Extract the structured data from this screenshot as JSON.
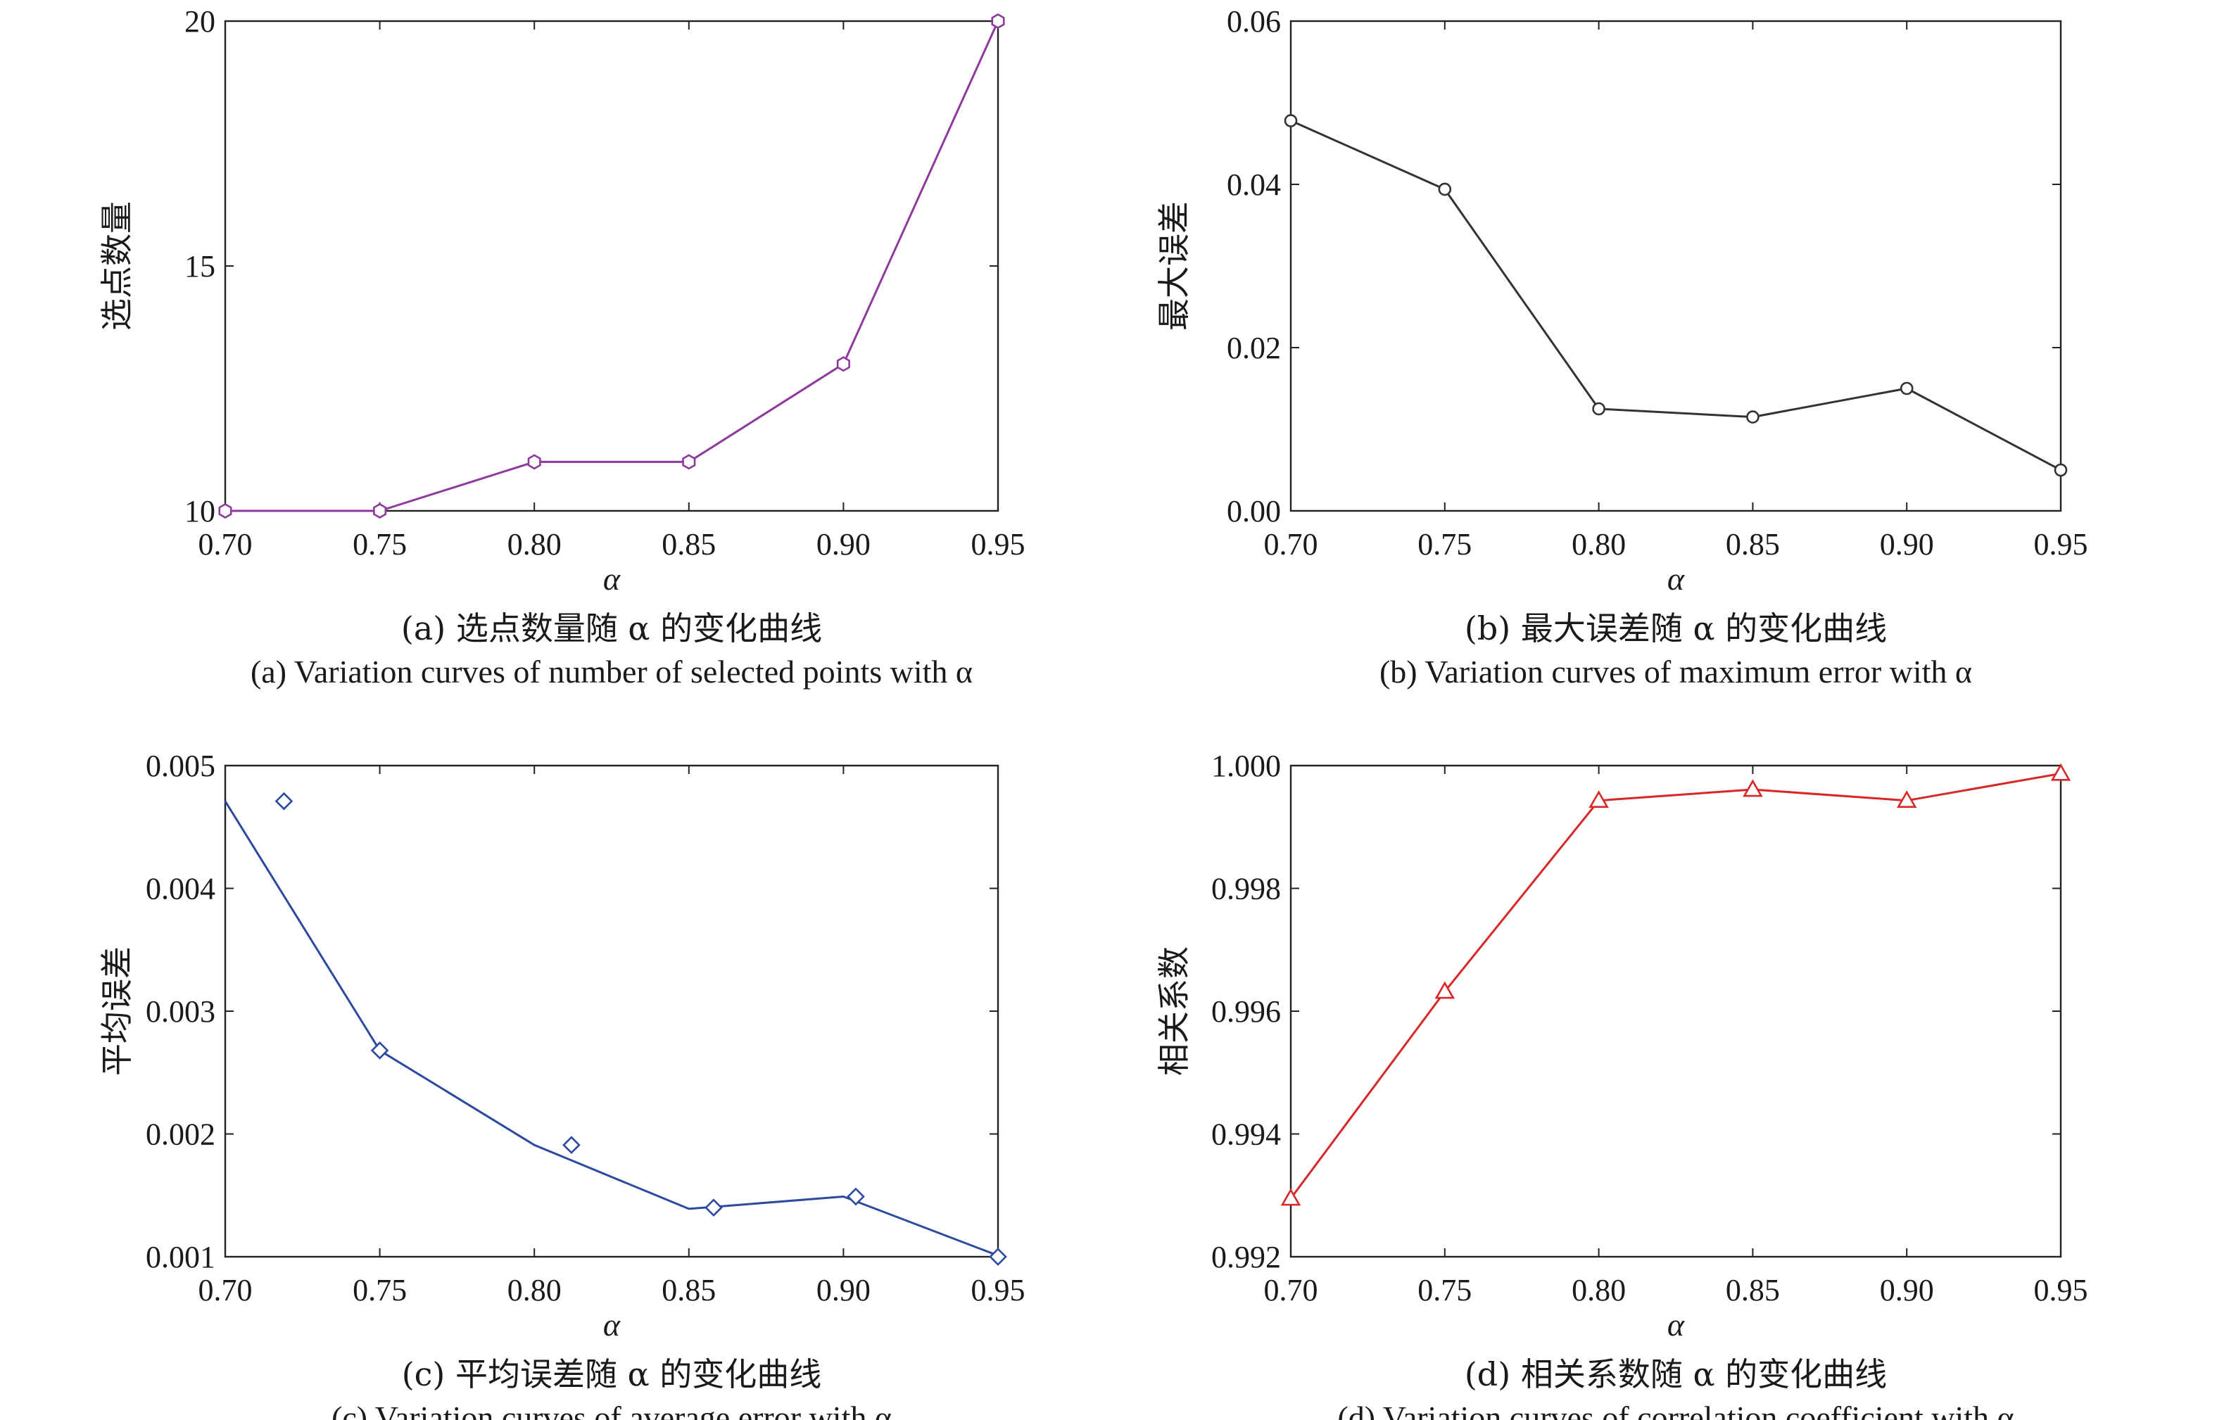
{
  "chart_data": [
    {
      "type": "line",
      "panel": "a",
      "xlabel": "α",
      "ylabel": "选点数量",
      "caption_zh": "(a) 选点数量随 α 的变化曲线",
      "caption_en": "(a) Variation curves of number of selected points with α",
      "xlim": [
        0.7,
        0.95
      ],
      "ylim": [
        10,
        20
      ],
      "xticks": [
        "0.70",
        "0.75",
        "0.80",
        "0.85",
        "0.90",
        "0.95"
      ],
      "yticks": [
        "10",
        "15",
        "20"
      ],
      "color": "#8e3a9c",
      "marker": "hexagon",
      "series": [
        {
          "x": [
            0.7,
            0.75,
            0.8,
            0.85,
            0.9,
            0.95
          ],
          "y": [
            10,
            10,
            11,
            11,
            13,
            20
          ]
        }
      ]
    },
    {
      "type": "line",
      "panel": "b",
      "xlabel": "α",
      "ylabel": "最大误差",
      "caption_zh": "(b) 最大误差随 α 的变化曲线",
      "caption_en": "(b) Variation curves of maximum error with α",
      "xlim": [
        0.7,
        0.95
      ],
      "ylim": [
        0.0,
        0.06
      ],
      "xticks": [
        "0.70",
        "0.75",
        "0.80",
        "0.85",
        "0.90",
        "0.95"
      ],
      "yticks": [
        "0.00",
        "0.02",
        "0.04",
        "0.06"
      ],
      "color": "#333333",
      "marker": "circle",
      "series": [
        {
          "x": [
            0.7,
            0.75,
            0.8,
            0.85,
            0.9,
            0.95
          ],
          "y": [
            0.0478,
            0.0394,
            0.0125,
            0.0115,
            0.015,
            0.005
          ]
        }
      ]
    },
    {
      "type": "line",
      "panel": "c",
      "xlabel": "α",
      "ylabel": "平均误差",
      "caption_zh": "(c) 平均误差随 α 的变化曲线",
      "caption_en": "(c) Variation curves of average error with α",
      "xlim": [
        0.7,
        0.95
      ],
      "ylim": [
        0.001,
        0.005
      ],
      "xticks": [
        "0.70",
        "0.75",
        "0.80",
        "0.85",
        "0.90",
        "0.95"
      ],
      "yticks": [
        "0.001",
        "0.002",
        "0.003",
        "0.004",
        "0.005"
      ],
      "color": "#2b4aa0",
      "marker": "diamond",
      "series": [
        {
          "line": {
            "x": [
              0.7,
              0.75,
              0.8,
              0.85,
              0.9,
              0.95
            ],
            "y": [
              0.00471,
              0.00268,
              0.00191,
              0.00139,
              0.00149,
              0.00101
            ]
          },
          "points": {
            "x": [
              0.719,
              0.75,
              0.812,
              0.858,
              0.904,
              0.95
            ],
            "y": [
              0.00471,
              0.00268,
              0.00191,
              0.0014,
              0.00149,
              0.001
            ]
          }
        }
      ]
    },
    {
      "type": "line",
      "panel": "d",
      "xlabel": "α",
      "ylabel": "相关系数",
      "caption_zh": "(d) 相关系数随 α 的变化曲线",
      "caption_en": "(d) Variation curves of correlation coefficient with α",
      "xlim": [
        0.7,
        0.95
      ],
      "ylim": [
        0.992,
        1.0
      ],
      "xticks": [
        "0.70",
        "0.75",
        "0.80",
        "0.85",
        "0.90",
        "0.95"
      ],
      "yticks": [
        "0.992",
        "0.994",
        "0.996",
        "0.998",
        "1.000"
      ],
      "color": "#d62828",
      "marker": "triangle",
      "series": [
        {
          "x": [
            0.7,
            0.75,
            0.8,
            0.85,
            0.9,
            0.95
          ],
          "y": [
            0.99295,
            0.99632,
            0.99943,
            0.99961,
            0.99943,
            0.99987
          ]
        }
      ]
    }
  ]
}
